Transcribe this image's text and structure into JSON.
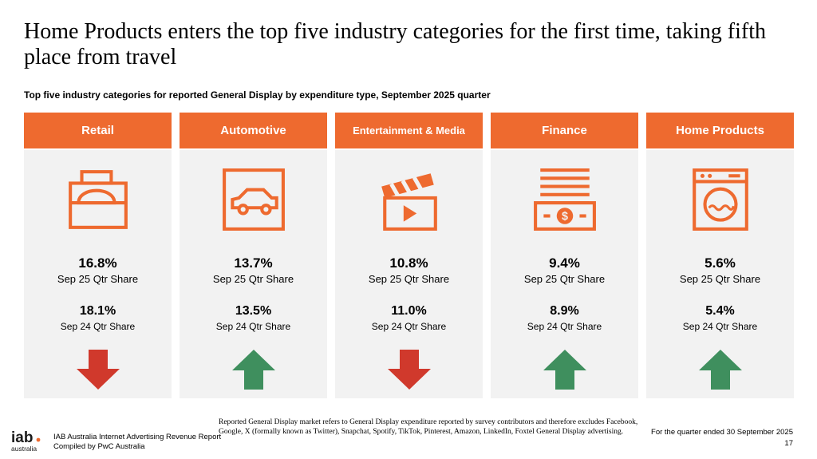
{
  "title": "Home Products enters the top five industry categories for the first time, taking fifth place from travel",
  "subtitle": "Top five industry categories for reported General Display by expenditure type, September 2025 quarter",
  "colors": {
    "accent": "#ee6a2f",
    "down": "#d0392c",
    "up": "#3f8f5e",
    "card_bg": "#f2f2f2"
  },
  "cards": [
    {
      "name": "Retail",
      "icon": "shopping-bag-icon",
      "current": "16.8%",
      "current_label": "Sep 25 Qtr Share",
      "previous": "18.1%",
      "previous_label": "Sep 24 Qtr Share",
      "trend": "down"
    },
    {
      "name": "Automotive",
      "icon": "car-icon",
      "current": "13.7%",
      "current_label": "Sep 25 Qtr Share",
      "previous": "13.5%",
      "previous_label": "Sep 24 Qtr Share",
      "trend": "up"
    },
    {
      "name": "Entertainment & Media",
      "icon": "clapperboard-icon",
      "current": "10.8%",
      "current_label": "Sep 25 Qtr Share",
      "previous": "11.0%",
      "previous_label": "Sep 24 Qtr Share",
      "trend": "down"
    },
    {
      "name": "Finance",
      "icon": "banknote-icon",
      "current": "9.4%",
      "current_label": "Sep 25 Qtr Share",
      "previous": "8.9%",
      "previous_label": "Sep 24 Qtr Share",
      "trend": "up"
    },
    {
      "name": "Home Products",
      "icon": "washing-machine-icon",
      "current": "5.6%",
      "current_label": "Sep 25 Qtr Share",
      "previous": "5.4%",
      "previous_label": "Sep 24 Qtr Share",
      "trend": "up"
    }
  ],
  "footer": {
    "logo_text": "iab. australia",
    "report_line1": "IAB Australia Internet Advertising Revenue Report",
    "report_line2": "Compiled by PwC Australia",
    "note": "Reported General Display market refers to General Display expenditure reported by survey contributors and therefore excludes Facebook, Google, X (formally known as Twitter), Snapchat, Spotify, TikTok, Pinterest, Amazon, LinkedIn, Foxtel General Display advertising.",
    "quarter": "For the quarter ended 30 September 2025",
    "page_number": "17"
  }
}
